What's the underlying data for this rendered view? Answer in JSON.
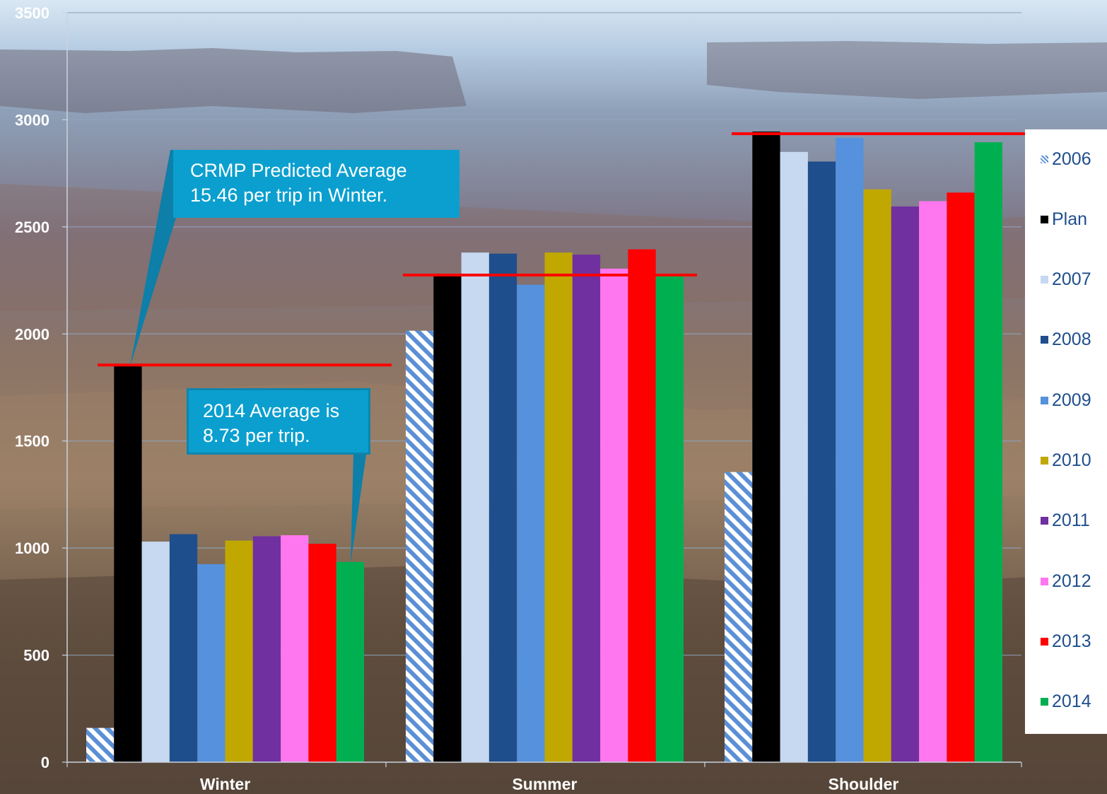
{
  "chart_data": {
    "type": "bar",
    "categories": [
      "Winter",
      "Summer",
      "Shoulder"
    ],
    "ylim": [
      0,
      3500
    ],
    "yticks": [
      "0",
      "500",
      "1000",
      "1500",
      "2000",
      "2500",
      "3000",
      "3500"
    ],
    "grid": true,
    "legend_placement": "right",
    "series": [
      {
        "name": "2006",
        "values": [
          160,
          2015,
          1355
        ],
        "color": "#5b8fd6",
        "pattern": "diagonal-stripes"
      },
      {
        "name": "Plan",
        "values": [
          1855,
          2280,
          2945
        ],
        "color": "#000000"
      },
      {
        "name": "2007",
        "values": [
          1030,
          2380,
          2850
        ],
        "color": "#c6d9f1"
      },
      {
        "name": "2008",
        "values": [
          1065,
          2375,
          2805
        ],
        "color": "#1f4e8c"
      },
      {
        "name": "2009",
        "values": [
          925,
          2230,
          2915
        ],
        "color": "#5591dc"
      },
      {
        "name": "2010",
        "values": [
          1035,
          2380,
          2675
        ],
        "color": "#c0a800"
      },
      {
        "name": "2011",
        "values": [
          1055,
          2370,
          2595
        ],
        "color": "#7030a0"
      },
      {
        "name": "2012",
        "values": [
          1060,
          2305,
          2620
        ],
        "color": "#ff77ee"
      },
      {
        "name": "2013",
        "values": [
          1020,
          2395,
          2660
        ],
        "color": "#ff0000"
      },
      {
        "name": "2014",
        "values": [
          935,
          2275,
          2895
        ],
        "color": "#00b050"
      }
    ],
    "reference_lines": [
      {
        "category": "Winter",
        "value": 1855,
        "color": "#ff0000"
      },
      {
        "category": "Summer",
        "value": 2275,
        "color": "#ff0000"
      },
      {
        "category": "Shoulder",
        "value": 2935,
        "color": "#ff0000"
      }
    ],
    "annotations": [
      {
        "lines": [
          "CRMP Predicted Average",
          "15.46 per trip in Winter."
        ],
        "points_to": {
          "category": "Winter",
          "series": "Plan"
        }
      },
      {
        "lines": [
          "2014 Average is",
          "8.73 per trip."
        ],
        "points_to": {
          "category": "Winter",
          "series": "2014"
        }
      }
    ]
  }
}
